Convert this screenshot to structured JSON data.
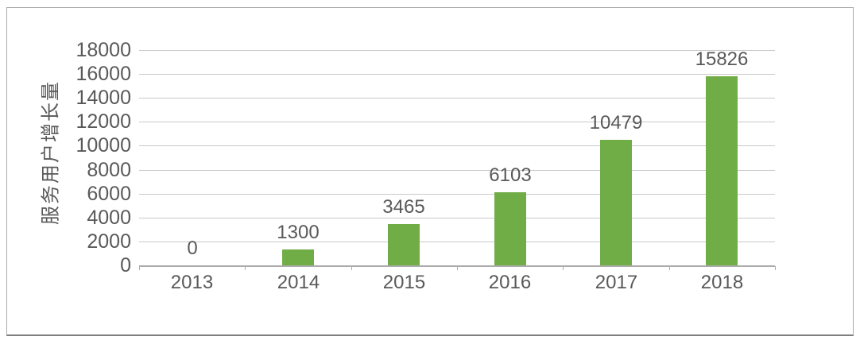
{
  "chart_data": {
    "type": "bar",
    "ylabel": "服务用户增长量",
    "xlabel": "",
    "categories": [
      "2013",
      "2014",
      "2015",
      "2016",
      "2017",
      "2018"
    ],
    "values": [
      0,
      1300,
      3465,
      6103,
      10479,
      15826
    ],
    "data_labels": [
      "0",
      "1300",
      "3465",
      "6103",
      "10479",
      "15826"
    ],
    "y_ticks": [
      0,
      2000,
      4000,
      6000,
      8000,
      10000,
      12000,
      14000,
      16000,
      18000
    ],
    "ylim": [
      0,
      18000
    ],
    "grid": "horizontal",
    "legend": "none",
    "colors": {
      "bar": "#70AD47",
      "gridline": "#c9c9c9",
      "axis_line": "#ababab",
      "text": "#595959",
      "frame_border": "#ababab",
      "frame_bottom_border": "#7f7f7f",
      "background": "#ffffff"
    }
  }
}
